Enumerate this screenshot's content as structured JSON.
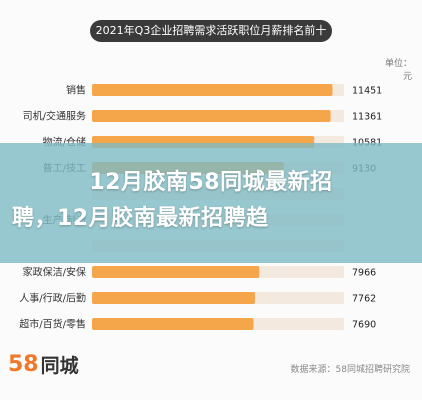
{
  "chart_data": {
    "type": "bar",
    "orientation": "horizontal",
    "title": "2021年Q3企业招聘需求活跃职位月薪排名前十",
    "unit": "单位：元",
    "categories": [
      "销售",
      "司机/交通服务",
      "物流/仓储",
      "普工/技工",
      "",
      "生产/制造",
      "",
      "家政保洁/安保",
      "人事/行政/后勤",
      "超市/百货/零售"
    ],
    "values": [
      11451,
      11361,
      10581,
      9130,
      null,
      null,
      null,
      7966,
      7762,
      7690
    ],
    "xlim": [
      0,
      12000
    ],
    "bar_color": "#f5a64a",
    "bar_bg_color": "#f4e9de"
  },
  "banner": {
    "line1": "12月胶南58同城最新招",
    "line2": "聘，12月胶南最新招聘趋"
  },
  "footer": {
    "logo_num": "58",
    "logo_text": "同城",
    "source": "数据来源：58同城招聘研究院"
  }
}
